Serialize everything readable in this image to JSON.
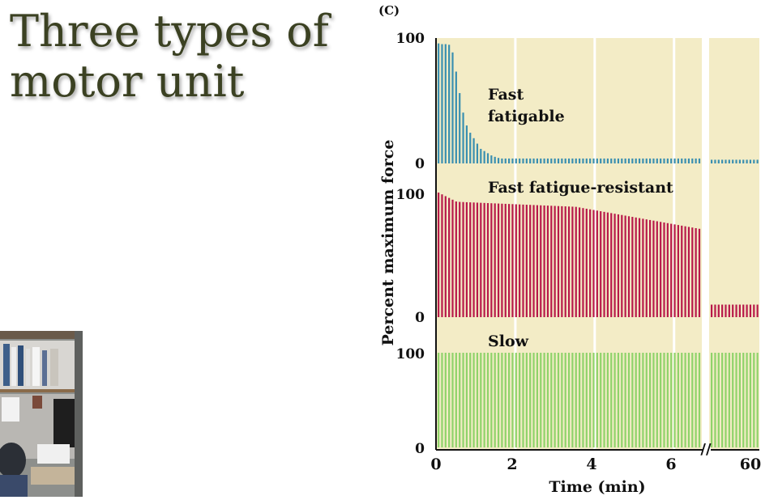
{
  "slide": {
    "title_line1": "Three types of",
    "title_line2": "motor unit"
  },
  "chart_data": {
    "type": "bar",
    "panel_label": "(C)",
    "xlabel": "Time (min)",
    "ylabel": "Percent maximum force",
    "x_ticks": [
      "0",
      "2",
      "4",
      "6",
      "60"
    ],
    "x_break": true,
    "grid": true,
    "colors": {
      "background": "#f3ecc6",
      "grid": "#ffffff",
      "fast_fatigable": "#3a8fb0",
      "fast_fatigue_resistant": "#b8194a",
      "slow": "#8fd36a"
    },
    "panels": [
      {
        "name": "Fast fatigable",
        "label_lines": [
          "Fast",
          "fatigable"
        ],
        "ylim": [
          0,
          100
        ],
        "y_ticks": [
          "100",
          "0"
        ],
        "early_x": [
          0,
          0.1,
          0.2,
          0.3,
          0.4,
          0.5,
          0.6,
          0.7,
          0.8,
          0.9,
          1.0,
          1.1,
          1.2,
          1.3,
          1.4,
          1.5,
          1.6,
          1.7,
          1.8
        ],
        "early_values": [
          98,
          97,
          97,
          97,
          90,
          72,
          52,
          35,
          27,
          22,
          17,
          12,
          10,
          8,
          6,
          5,
          4,
          4,
          4
        ],
        "plateau_value": 4,
        "late_value": 3
      },
      {
        "name": "Fast fatigue-resistant",
        "label_lines": [
          "Fast fatigue-resistant"
        ],
        "ylim": [
          0,
          100
        ],
        "y_ticks": [
          "100",
          "0"
        ],
        "start_value": 100,
        "shoulder_value": 92,
        "mid_value": 88,
        "end_value": 70,
        "late_value": 10
      },
      {
        "name": "Slow",
        "label_lines": [
          "Slow"
        ],
        "ylim": [
          0,
          100
        ],
        "y_ticks": [
          "100",
          "0"
        ],
        "value": 100,
        "late_value": 100
      }
    ]
  }
}
